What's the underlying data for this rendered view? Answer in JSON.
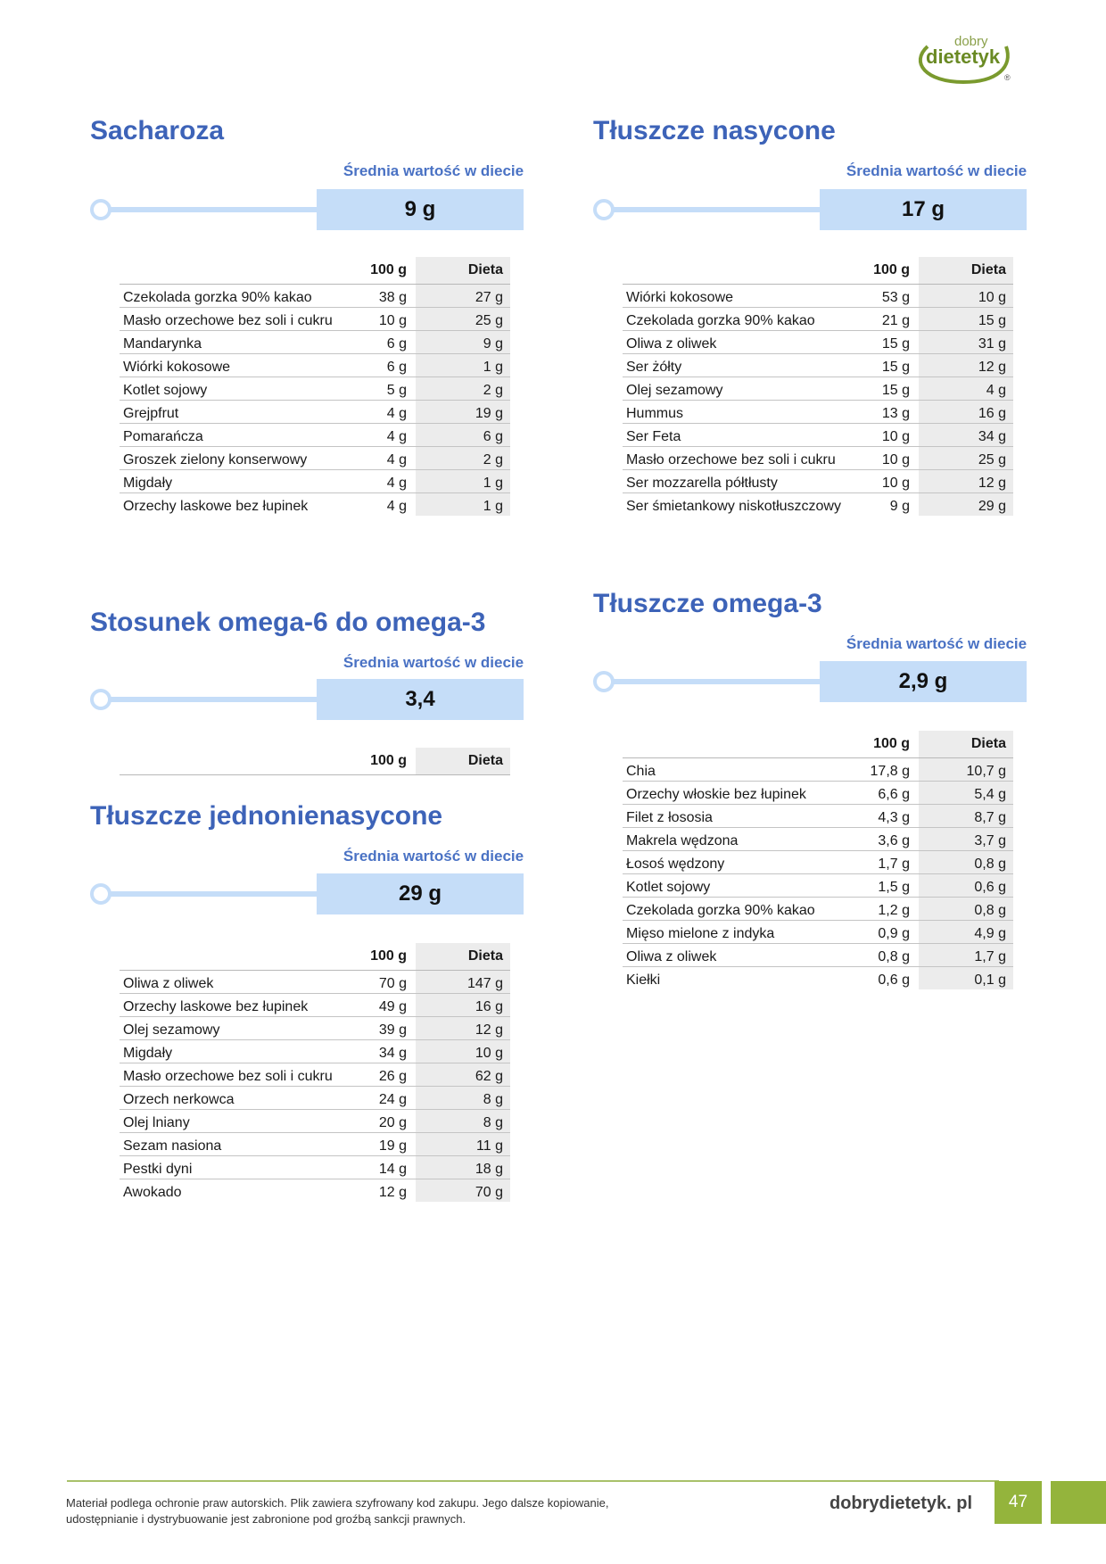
{
  "logo": {
    "line1": "dobry",
    "line2": "dietetyk",
    "mark": "®"
  },
  "colors": {
    "title": "#3d63b8",
    "bar": "#c5ddf8",
    "green": "#94b43c",
    "column_bg": "#ececec"
  },
  "sections": [
    {
      "title": "Sacharoza",
      "avg_label": "Średnia wartość w diecie",
      "avg_value": "9 g",
      "headers": [
        "100 g",
        "Dieta"
      ],
      "rows": [
        [
          "Czekolada gorzka 90% kakao",
          "38 g",
          "27 g"
        ],
        [
          "Masło orzechowe bez soli i cukru",
          "10 g",
          "25 g"
        ],
        [
          "Mandarynka",
          "6 g",
          "9 g"
        ],
        [
          "Wiórki kokosowe",
          "6 g",
          "1 g"
        ],
        [
          "Kotlet sojowy",
          "5 g",
          "2 g"
        ],
        [
          "Grejpfrut",
          "4 g",
          "19 g"
        ],
        [
          "Pomarańcza",
          "4 g",
          "6 g"
        ],
        [
          "Groszek zielony konserwowy",
          "4 g",
          "2 g"
        ],
        [
          "Migdały",
          "4 g",
          "1 g"
        ],
        [
          "Orzechy laskowe bez łupinek",
          "4 g",
          "1 g"
        ]
      ]
    },
    {
      "title": "Stosunek omega-6 do omega-3",
      "avg_label": "Średnia wartość w diecie",
      "avg_value": "3,4",
      "headers": [
        "100 g",
        "Dieta"
      ],
      "rows": []
    },
    {
      "title": "Tłuszcze jednonienasycone",
      "avg_label": "Średnia wartość w diecie",
      "avg_value": "29 g",
      "headers": [
        "100 g",
        "Dieta"
      ],
      "rows": [
        [
          "Oliwa z oliwek",
          "70 g",
          "147 g"
        ],
        [
          "Orzechy laskowe bez łupinek",
          "49 g",
          "16 g"
        ],
        [
          "Olej sezamowy",
          "39 g",
          "12 g"
        ],
        [
          "Migdały",
          "34 g",
          "10 g"
        ],
        [
          "Masło orzechowe bez soli i cukru",
          "26 g",
          "62 g"
        ],
        [
          "Orzech nerkowca",
          "24 g",
          "8 g"
        ],
        [
          "Olej lniany",
          "20 g",
          "8 g"
        ],
        [
          "Sezam nasiona",
          "19 g",
          "11 g"
        ],
        [
          "Pestki dyni",
          "14 g",
          "18 g"
        ],
        [
          "Awokado",
          "12 g",
          "70 g"
        ]
      ]
    },
    {
      "title": "Tłuszcze nasycone",
      "avg_label": "Średnia wartość w diecie",
      "avg_value": "17 g",
      "headers": [
        "100 g",
        "Dieta"
      ],
      "rows": [
        [
          "Wiórki kokosowe",
          "53 g",
          "10 g"
        ],
        [
          "Czekolada gorzka 90% kakao",
          "21 g",
          "15 g"
        ],
        [
          "Oliwa z oliwek",
          "15 g",
          "31 g"
        ],
        [
          "Ser żółty",
          "15 g",
          "12 g"
        ],
        [
          "Olej sezamowy",
          "15 g",
          "4 g"
        ],
        [
          "Hummus",
          "13 g",
          "16 g"
        ],
        [
          "Ser Feta",
          "10 g",
          "34 g"
        ],
        [
          "Masło orzechowe bez soli i cukru",
          "10 g",
          "25 g"
        ],
        [
          "Ser mozzarella półtłusty",
          "10 g",
          "12 g"
        ],
        [
          "Ser śmietankowy niskotłuszczowy",
          "9 g",
          "29 g"
        ]
      ]
    },
    {
      "title": "Tłuszcze omega-3",
      "avg_label": "Średnia wartość w diecie",
      "avg_value": "2,9 g",
      "headers": [
        "100 g",
        "Dieta"
      ],
      "rows": [
        [
          "Chia",
          "17,8 g",
          "10,7 g"
        ],
        [
          "Orzechy włoskie bez łupinek",
          "6,6 g",
          "5,4 g"
        ],
        [
          "Filet z łososia",
          "4,3 g",
          "8,7 g"
        ],
        [
          "Makrela wędzona",
          "3,6 g",
          "3,7 g"
        ],
        [
          "Łosoś wędzony",
          "1,7 g",
          "0,8 g"
        ],
        [
          "Kotlet sojowy",
          "1,5 g",
          "0,6 g"
        ],
        [
          "Czekolada gorzka 90% kakao",
          "1,2 g",
          "0,8 g"
        ],
        [
          "Mięso mielone z indyka",
          "0,9 g",
          "4,9 g"
        ],
        [
          "Oliwa z oliwek",
          "0,8 g",
          "1,7 g"
        ],
        [
          "Kiełki",
          "0,6 g",
          "0,1 g"
        ]
      ]
    }
  ],
  "footer": {
    "notice": "Materiał podlega ochronie praw autorskich. Plik zawiera szyfrowany kod zakupu. Jego dalsze kopiowanie, udostępnianie i dystrybuowanie jest zabronione pod groźbą sankcji prawnych.",
    "site": "dobrydietetyk. pl",
    "page": "47"
  }
}
